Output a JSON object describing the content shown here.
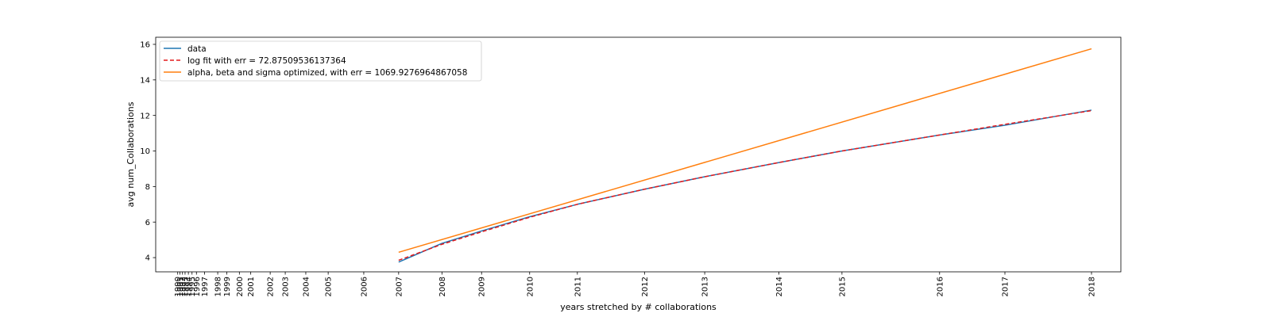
{
  "chart_data": {
    "type": "line",
    "xlabel": "years stretched by # collaborations",
    "ylabel": "avg num_Collaborations",
    "xlim": [
      -0.6,
      25.7
    ],
    "ylim": [
      3.2,
      16.4
    ],
    "grid": false,
    "legend_placement": "top-left",
    "x_ticks": [
      {
        "label": "1990",
        "x": 0.0
      },
      {
        "label": "1991",
        "x": 0.06
      },
      {
        "label": "1992",
        "x": 0.13
      },
      {
        "label": "1993",
        "x": 0.2
      },
      {
        "label": "1994",
        "x": 0.29
      },
      {
        "label": "1995",
        "x": 0.39
      },
      {
        "label": "1996",
        "x": 0.51
      },
      {
        "label": "1997",
        "x": 0.73
      },
      {
        "label": "1998",
        "x": 1.09
      },
      {
        "label": "1999",
        "x": 1.34
      },
      {
        "label": "2000",
        "x": 1.68
      },
      {
        "label": "2001",
        "x": 1.99
      },
      {
        "label": "2002",
        "x": 2.52
      },
      {
        "label": "2003",
        "x": 2.93
      },
      {
        "label": "2004",
        "x": 3.49
      },
      {
        "label": "2005",
        "x": 4.1
      },
      {
        "label": "2006",
        "x": 5.07
      },
      {
        "label": "2007",
        "x": 6.02
      },
      {
        "label": "2008",
        "x": 7.2
      },
      {
        "label": "2009",
        "x": 8.28
      },
      {
        "label": "2010",
        "x": 9.59
      },
      {
        "label": "2011",
        "x": 10.89
      },
      {
        "label": "2012",
        "x": 12.72
      },
      {
        "label": "2013",
        "x": 14.36
      },
      {
        "label": "2014",
        "x": 16.38
      },
      {
        "label": "2015",
        "x": 18.1
      },
      {
        "label": "2016",
        "x": 20.76
      },
      {
        "label": "2017",
        "x": 22.54
      },
      {
        "label": "2018",
        "x": 24.9
      }
    ],
    "y_ticks": [
      4,
      6,
      8,
      10,
      12,
      14,
      16
    ],
    "series": [
      {
        "name": "data",
        "color": "#1f77b4",
        "style": "solid",
        "x": [
          6.02,
          7.2,
          8.28,
          9.59,
          10.89,
          12.72,
          14.36,
          16.38,
          18.1,
          20.76,
          22.54,
          24.9
        ],
        "y": [
          3.75,
          4.8,
          5.5,
          6.3,
          7.0,
          7.85,
          8.55,
          9.35,
          10.0,
          10.9,
          11.45,
          12.3
        ]
      },
      {
        "name": "log fit with err = 72.87509536137364",
        "color": "#e41a1c",
        "style": "dashed",
        "x": [
          6.02,
          7.2,
          8.28,
          9.59,
          10.89,
          12.72,
          14.36,
          16.38,
          18.1,
          20.76,
          22.54,
          24.9
        ],
        "y": [
          3.85,
          4.75,
          5.45,
          6.27,
          7.0,
          7.85,
          8.55,
          9.35,
          10.0,
          10.9,
          11.5,
          12.27
        ]
      },
      {
        "name": "alpha, beta and sigma optimized, with err = 1069.9276964867058",
        "color": "#ff7f0e",
        "style": "solid",
        "x": [
          6.02,
          24.9
        ],
        "y": [
          4.3,
          15.75
        ]
      }
    ]
  }
}
